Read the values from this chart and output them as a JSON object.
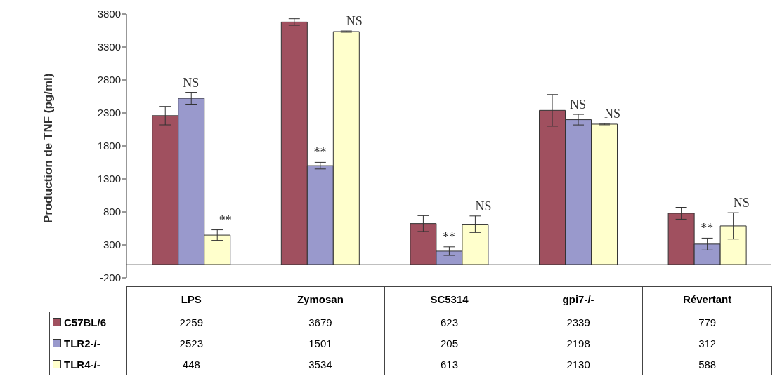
{
  "chart_data": {
    "type": "bar",
    "ylabel": "Production de TNF (pg/ml)",
    "categories": [
      "LPS",
      "Zymosan",
      "SC5314",
      "gpi7-/-",
      "Révertant"
    ],
    "series": [
      {
        "name": "C57BL/6",
        "color": "#a0505f",
        "values": [
          2259,
          3679,
          623,
          2339,
          779
        ],
        "errors": [
          140,
          50,
          120,
          240,
          90
        ]
      },
      {
        "name": "TLR2-/-",
        "color": "#9999cc",
        "values": [
          2523,
          1501,
          205,
          2198,
          312
        ],
        "errors": [
          90,
          50,
          65,
          80,
          90
        ]
      },
      {
        "name": "TLR4-/-",
        "color": "#ffffcc",
        "values": [
          448,
          3534,
          613,
          2130,
          588
        ],
        "errors": [
          80,
          10,
          125,
          10,
          200
        ]
      }
    ],
    "ylim": [
      -200,
      3800
    ],
    "yticks": [
      -200,
      300,
      800,
      1300,
      1800,
      2300,
      2800,
      3300,
      3800
    ],
    "ref_lines": [
      {
        "axis": "y",
        "value": 0
      }
    ],
    "data_labels": true,
    "legend": "bottom left",
    "grid": false,
    "annotations": [
      {
        "text": "NS",
        "x": "LPS",
        "y": 2613
      },
      "**",
      {
        "text": "**",
        "x": "Zymosan",
        "y": 1551
      },
      "NS",
      {
        "text": "**",
        "x": "SC5314",
        "y": 270
      },
      "NS",
      {
        "text": "NS",
        "x": "gpi7-/-",
        "y": 2278
      },
      {
        "text": "NS",
        "x": "gpi7-/-",
        "y": 2140
      },
      {
        "text": "**",
        "x": "Révertant",
        "y": 402
      },
      "NS"
    ]
  }
}
